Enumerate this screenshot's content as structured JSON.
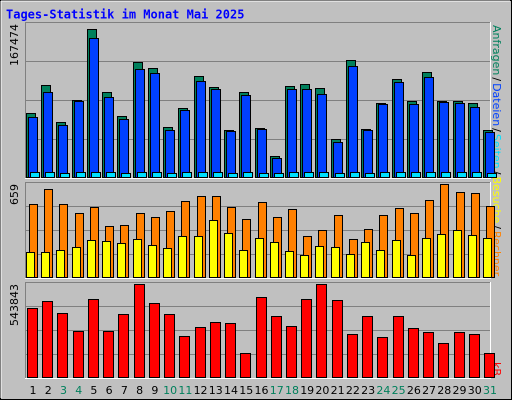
{
  "chart_data": [
    {
      "type": "bar",
      "title": "Tages-Statistik im Monat Mai 2025",
      "categories": [
        "1",
        "2",
        "3",
        "4",
        "5",
        "6",
        "7",
        "8",
        "9",
        "10",
        "11",
        "12",
        "13",
        "14",
        "15",
        "16",
        "17",
        "18",
        "19",
        "20",
        "21",
        "22",
        "23",
        "24",
        "25",
        "26",
        "27",
        "28",
        "29",
        "30",
        "31"
      ],
      "category_colors": [
        "#000000",
        "#000000",
        "#00805c",
        "#00805c",
        "#000000",
        "#000000",
        "#000000",
        "#000000",
        "#000000",
        "#00805c",
        "#00805c",
        "#000000",
        "#000000",
        "#000000",
        "#000000",
        "#000000",
        "#00805c",
        "#00805c",
        "#000000",
        "#000000",
        "#000000",
        "#000000",
        "#000000",
        "#00805c",
        "#00805c",
        "#000000",
        "#000000",
        "#000000",
        "#000000",
        "#000000",
        "#00805c"
      ],
      "legend_separator": "/",
      "ylim": [
        0,
        167474
      ],
      "yticks": [
        167474
      ],
      "series": [
        {
          "name": "Anfragen",
          "color": "#00805c",
          "values": [
            72422,
            104108,
            62238,
            87133,
            167474,
            96186,
            69028,
            130134,
            123344,
            56580,
            78080,
            114292,
            101844,
            53185,
            96186,
            55448,
            23764,
            102975,
            105239,
            100713,
            43000,
            132397,
            54317,
            83738,
            110897,
            86002,
            118817,
            86002,
            86002,
            83738,
            53185
          ]
        },
        {
          "name": "Dateien",
          "color": "#0040ff",
          "values": [
            67897,
            96186,
            58843,
            86002,
            157290,
            90528,
            65633,
            122213,
            117685,
            53185,
            75817,
            108634,
            99581,
            52053,
            92791,
            54317,
            21500,
            99581,
            99581,
            93923,
            39606,
            125608,
            53185,
            82607,
            107503,
            82607,
            113160,
            84870,
            83738,
            79212,
            50922
          ]
        },
        {
          "name": "Seiten",
          "color": "#00e0ff",
          "values": [
            5600,
            5200,
            4900,
            5400,
            6100,
            5500,
            5000,
            5900,
            5800,
            4700,
            5100,
            5600,
            5500,
            4600,
            5300,
            4900,
            4200,
            5400,
            5500,
            5300,
            4500,
            5800,
            4800,
            5100,
            5600,
            5200,
            5700,
            5300,
            5200,
            5100,
            4600
          ]
        }
      ]
    },
    {
      "type": "bar",
      "ylim": [
        0,
        659
      ],
      "yticks": [
        659
      ],
      "series": [
        {
          "name": "Besuche",
          "color": "#ffff00",
          "values": [
            179,
            179,
            193,
            215,
            265,
            258,
            244,
            272,
            229,
            208,
            287,
            294,
            401,
            315,
            193,
            279,
            251,
            186,
            158,
            222,
            215,
            165,
            251,
            193,
            265,
            158,
            279,
            308,
            330,
            301,
            279
          ]
        },
        {
          "name": "Rechner",
          "color": "#ff8000",
          "values": [
            516,
            623,
            516,
            451,
            494,
            358,
            372,
            451,
            423,
            466,
            537,
            573,
            573,
            494,
            408,
            530,
            423,
            480,
            294,
            330,
            437,
            272,
            337,
            437,
            487,
            451,
            544,
            659,
            602,
            595,
            501
          ]
        }
      ]
    },
    {
      "type": "bar",
      "ylim": [
        0,
        543843
      ],
      "yticks": [
        543843
      ],
      "series": [
        {
          "name": "kB",
          "color": "#ff0000",
          "values": [
            401948,
            443327,
            372393,
            271906,
            455147,
            271906,
            366482,
            543843,
            431503,
            366482,
            242351,
            289639,
            319194,
            313283,
            141864,
            466969,
            354666,
            295560,
            455147,
            543843,
            449241,
            254173,
            354666,
            236444,
            354666,
            283738,
            266002,
            200979,
            266002,
            254173,
            141864
          ]
        }
      ]
    }
  ]
}
